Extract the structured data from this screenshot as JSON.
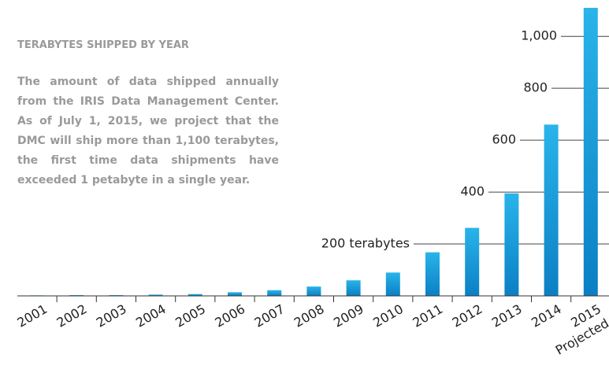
{
  "chart_data": {
    "type": "bar",
    "title": "TERABYTES SHIPPED BY YEAR",
    "subtitle": "The amount of data shipped annually from the IRIS Data Management Center. As of July 1, 2015, we project that the DMC will ship more than 1,100 terabytes, the first time data shipments have exceeded 1 petabyte in a single year.",
    "categories": [
      "2001",
      "2002",
      "2003",
      "2004",
      "2005",
      "2006",
      "2007",
      "2008",
      "2009",
      "2010",
      "2011",
      "2012",
      "2013",
      "2014",
      "2015"
    ],
    "projected_label": "Projected",
    "values": [
      2,
      3,
      3,
      5,
      7,
      14,
      22,
      36,
      60,
      90,
      168,
      262,
      395,
      660,
      1110
    ],
    "color": "#1a9ad6",
    "ylim": [
      0,
      1125
    ],
    "yticks": [
      {
        "value": 200,
        "label": "200 terabytes"
      },
      400,
      600,
      800,
      {
        "value": 1000,
        "label": "1,000"
      }
    ],
    "grid": true
  }
}
